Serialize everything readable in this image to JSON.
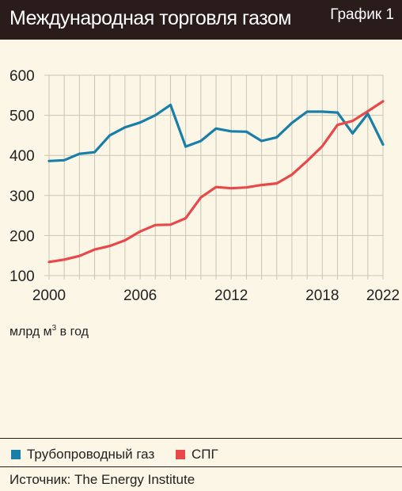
{
  "header": {
    "title": "Международная торговля газом",
    "badge": "График 1"
  },
  "unit_label": {
    "text": "млрд м",
    "sup": "3",
    "suffix": " в год"
  },
  "source": "Источник: The Energy Institute",
  "colors": {
    "pipeline": "#1a7fa8",
    "lng": "#e8484a",
    "header_bg": "#2b1c1c",
    "background": "#fbf6e6",
    "grid": "#c9c4b4"
  },
  "chart_data": {
    "type": "line",
    "title": "Международная торговля газом",
    "xlabel": "",
    "ylabel": "млрд м3 в год",
    "xlim": [
      2000,
      2022
    ],
    "ylim": [
      100,
      600
    ],
    "x_ticks": [
      2000,
      2006,
      2012,
      2018,
      2022
    ],
    "y_ticks": [
      100,
      200,
      300,
      400,
      500,
      600
    ],
    "grid": true,
    "legend": "bottom",
    "x": [
      2000,
      2001,
      2002,
      2003,
      2004,
      2005,
      2006,
      2007,
      2008,
      2009,
      2010,
      2011,
      2012,
      2013,
      2014,
      2015,
      2016,
      2017,
      2018,
      2019,
      2020,
      2021,
      2022
    ],
    "series": [
      {
        "name": "Трубопроводный газ",
        "color": "#1a7fa8",
        "values": [
          386,
          388,
          404,
          408,
          450,
          470,
          482,
          500,
          526,
          422,
          436,
          467,
          460,
          459,
          436,
          445,
          481,
          509,
          509,
          507,
          455,
          504,
          427
        ]
      },
      {
        "name": "СПГ",
        "color": "#e8484a",
        "values": [
          134,
          140,
          149,
          165,
          174,
          188,
          210,
          226,
          227,
          243,
          295,
          321,
          318,
          320,
          326,
          330,
          352,
          386,
          423,
          476,
          486,
          510,
          535
        ]
      }
    ]
  }
}
